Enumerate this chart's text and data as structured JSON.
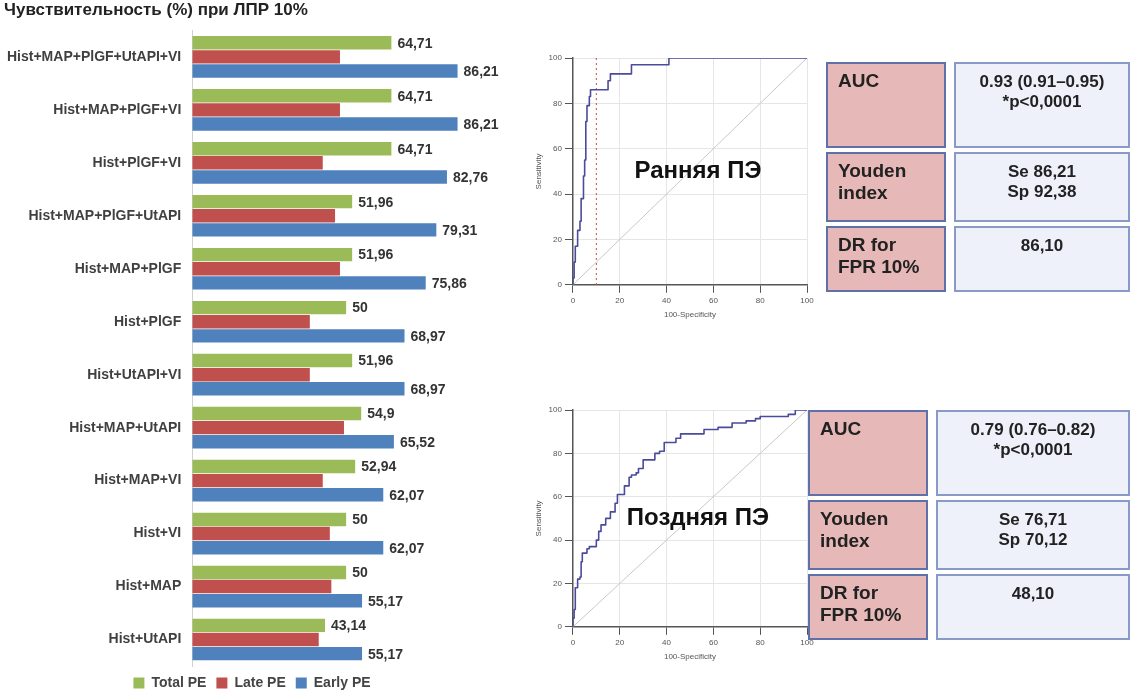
{
  "chart_data": [
    {
      "type": "bar",
      "title": "Чувствительность (%) при ЛПР 10%",
      "orientation": "horizontal",
      "categories": [
        "Hist+MAP+PlGF+UtAPI+VI",
        "Hist+MAP+PlGF+VI",
        "Hist+PlGF+VI",
        "Hist+MAP+PlGF+UtAPI",
        "Hist+MAP+PlGF",
        "Hist+PlGF",
        "Hist+UtAPI+VI",
        "Hist+MAP+UtAPI",
        "Hist+MAP+VI",
        "Hist+VI",
        "Hist+MAP",
        "Hist+UtAPI"
      ],
      "series": [
        {
          "name": "Total PE",
          "color": "#9bbb59",
          "values": [
            64.71,
            64.71,
            64.71,
            51.96,
            51.96,
            50,
            51.96,
            54.9,
            52.94,
            50,
            50,
            43.14
          ],
          "value_labels": [
            "64,71",
            "64,71",
            "64,71",
            "51,96",
            "51,96",
            "50",
            "51,96",
            "54,9",
            "52,94",
            "50",
            "50",
            "43,14"
          ]
        },
        {
          "name": "Late PE",
          "color": "#c0504d",
          "values": [
            48,
            48,
            42.4,
            46.4,
            48,
            38.2,
            38.2,
            49.3,
            42.4,
            44.7,
            45.2,
            41.1
          ]
        },
        {
          "name": "Early PE",
          "color": "#4f81bd",
          "values": [
            86.21,
            86.21,
            82.76,
            79.31,
            75.86,
            68.97,
            68.97,
            65.52,
            62.07,
            62.07,
            55.17,
            55.17
          ],
          "value_labels": [
            "86,21",
            "86,21",
            "82,76",
            "79,31",
            "75,86",
            "68,97",
            "68,97",
            "65,52",
            "62,07",
            "62,07",
            "55,17",
            "55,17"
          ]
        }
      ],
      "tick_labels": "y",
      "grid": false,
      "legend": "bottom"
    },
    {
      "type": "line",
      "xlabel": "100-Specificity",
      "ylabel": "Sensitivity",
      "xlim": [
        0,
        100
      ],
      "ylim": [
        0,
        100
      ],
      "xticks": [
        0,
        20,
        40,
        60,
        80,
        100
      ],
      "yticks": [
        0,
        20,
        40,
        60,
        80,
        100
      ],
      "grid": true,
      "legend": false,
      "marker": "none",
      "series": [
        {
          "type": "step",
          "color": "#4b4b9b",
          "x": [
            0,
            0,
            0.5,
            1,
            1,
            1.5,
            2,
            3,
            3,
            3.5,
            3.5,
            4,
            4.5,
            5,
            5.5,
            5.5,
            6,
            6,
            7,
            7,
            7.5,
            15,
            15,
            16,
            16,
            25,
            25,
            41,
            41,
            100
          ],
          "values": [
            0,
            3,
            10,
            10,
            17,
            17,
            24,
            24,
            28,
            28,
            38,
            38,
            48,
            55,
            62,
            72,
            76,
            79,
            79,
            83,
            86,
            86,
            90,
            90,
            93,
            93,
            97,
            97,
            100,
            100
          ]
        },
        {
          "type": "line",
          "color": "#c8c8c8",
          "x": [
            0,
            100
          ],
          "values": [
            0,
            100
          ]
        }
      ],
      "ref_lines": [
        {
          "axis": "x",
          "value": 10,
          "color": "#c0504d",
          "line_style": "dotted"
        }
      ],
      "annotations": [
        "Ранняя ПЭ"
      ]
    },
    {
      "type": "other",
      "annotations": [
        "AUC",
        "0.93 (0.91–0.95)\n*p<0,0001",
        "Youden index",
        "Se 86,21\nSp 92,38",
        "DR for FPR 10%",
        "86,10"
      ]
    },
    {
      "type": "line",
      "xlabel": "100-Specificity",
      "ylabel": "Sensitivity",
      "xlim": [
        0,
        100
      ],
      "ylim": [
        0,
        100
      ],
      "xticks": [
        0,
        20,
        40,
        60,
        80,
        100
      ],
      "yticks": [
        0,
        20,
        40,
        60,
        80,
        100
      ],
      "grid": true,
      "legend": false,
      "marker": "none",
      "series": [
        {
          "type": "step",
          "color": "#4b4b9b",
          "x": [
            0,
            0,
            0.5,
            1,
            1,
            2,
            3,
            3.5,
            4,
            5,
            6,
            7,
            9,
            10,
            11,
            12,
            14,
            16,
            18,
            19,
            21,
            22,
            24,
            25,
            27,
            28,
            30,
            32,
            35,
            37,
            39,
            42,
            44,
            46,
            54,
            56,
            60,
            62,
            66,
            68,
            72,
            74,
            78,
            80,
            90,
            92,
            95,
            100
          ],
          "values": [
            0,
            4,
            8,
            8,
            18,
            22,
            23,
            30,
            34,
            34,
            36,
            37,
            37,
            40,
            44,
            47,
            50,
            53,
            57,
            61,
            61,
            65,
            69,
            70,
            71,
            73,
            77,
            77,
            80,
            81,
            85,
            85,
            87,
            89,
            89,
            91,
            91,
            92,
            92,
            94,
            94,
            95,
            96,
            97,
            97,
            98,
            100,
            100
          ]
        },
        {
          "type": "line",
          "color": "#c8c8c8",
          "x": [
            0,
            100
          ],
          "values": [
            0,
            100
          ]
        }
      ],
      "annotations": [
        "Поздняя ПЭ"
      ]
    },
    {
      "type": "other",
      "annotations": [
        "AUC",
        "0.79 (0.76–0.82)\n*p<0,0001",
        "Youden index",
        "Se 76,71\nSp 70,12",
        "DR for FPR 10%",
        "48,10"
      ]
    }
  ]
}
